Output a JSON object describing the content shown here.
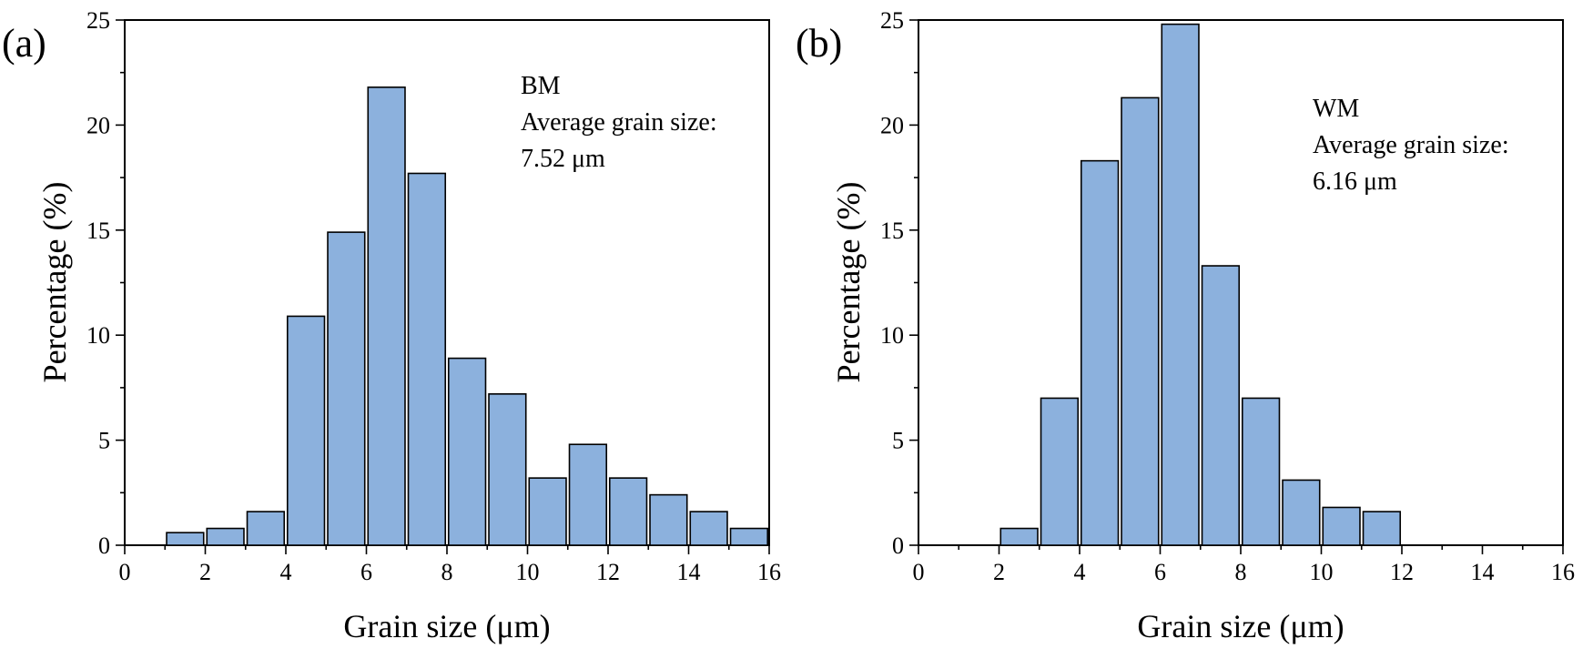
{
  "chart_data": [
    {
      "type": "bar",
      "panel_label": "(a)",
      "title": "",
      "xlabel": "Grain size (μm)",
      "ylabel": "Percentage (%)",
      "xlim": [
        0,
        16
      ],
      "ylim": [
        0,
        25
      ],
      "x_ticks": [
        0,
        2,
        4,
        6,
        8,
        10,
        12,
        14,
        16
      ],
      "y_ticks": [
        0,
        5,
        10,
        15,
        20,
        25
      ],
      "bin_width": 1,
      "bin_starts": [
        1,
        2,
        3,
        4,
        5,
        6,
        7,
        8,
        9,
        10,
        11,
        12,
        13,
        14,
        15
      ],
      "values": [
        0.6,
        0.8,
        1.6,
        10.9,
        14.9,
        21.8,
        17.7,
        8.9,
        7.2,
        3.2,
        4.8,
        3.2,
        2.4,
        1.6,
        0.8
      ],
      "bar_color": "#8cb1dd",
      "annotations": [
        "BM",
        "Average grain size:",
        "7.52 μm"
      ]
    },
    {
      "type": "bar",
      "panel_label": "(b)",
      "title": "",
      "xlabel": "Grain size (μm)",
      "ylabel": "Percentage (%)",
      "xlim": [
        0,
        16
      ],
      "ylim": [
        0,
        25
      ],
      "x_ticks": [
        0,
        2,
        4,
        6,
        8,
        10,
        12,
        14,
        16
      ],
      "y_ticks": [
        0,
        5,
        10,
        15,
        20,
        25
      ],
      "bin_width": 1,
      "bin_starts": [
        2,
        3,
        4,
        5,
        6,
        7,
        8,
        9,
        10,
        11
      ],
      "values": [
        0.8,
        7.0,
        18.3,
        21.3,
        24.8,
        13.3,
        7.0,
        3.1,
        1.8,
        1.6
      ],
      "bar_color": "#8cb1dd",
      "annotations": [
        "WM",
        "Average grain size:",
        "6.16 μm"
      ]
    }
  ]
}
